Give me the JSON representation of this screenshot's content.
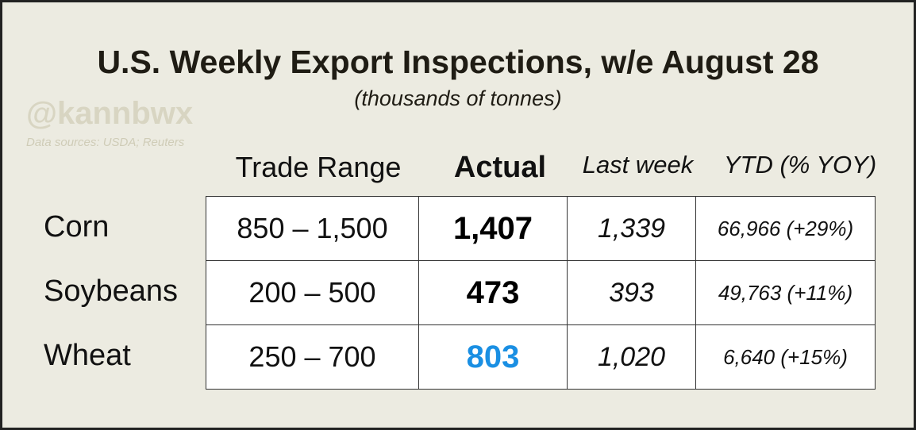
{
  "header": {
    "title": "U.S. Weekly Export Inspections, w/e August 28",
    "subtitle": "(thousands of tonnes)",
    "watermark": "@kannbwx",
    "source": "Data sources: USDA; Reuters"
  },
  "table": {
    "columns": [
      "Trade Range",
      "Actual",
      "Last week",
      "YTD (% YOY)"
    ],
    "rows": [
      {
        "label": "Corn",
        "range": "850 – 1,500",
        "actual": "1,407",
        "last_week": "1,339",
        "ytd": "66,966 (+29%)",
        "actual_color": "#000000"
      },
      {
        "label": "Soybeans",
        "range": "200 – 500",
        "actual": "473",
        "last_week": "393",
        "ytd": "49,763 (+11%)",
        "actual_color": "#000000"
      },
      {
        "label": "Wheat",
        "range": "250 – 700",
        "actual": "803",
        "last_week": "1,020",
        "ytd": "6,640 (+15%)",
        "actual_color": "#1a8fe3"
      }
    ]
  }
}
